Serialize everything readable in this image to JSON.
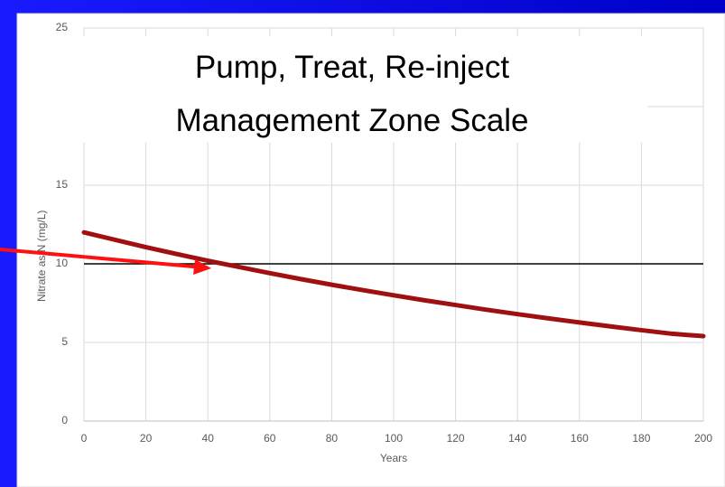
{
  "chart_data": {
    "type": "line",
    "title": [
      "Pump, Treat, Re-inject",
      "Management Zone Scale"
    ],
    "xlabel": "Years",
    "ylabel": "Nitrate as N (mg/L)",
    "x": [
      0,
      10,
      20,
      30,
      40,
      50,
      60,
      70,
      80,
      90,
      100,
      110,
      120,
      130,
      140,
      150,
      160,
      170,
      180,
      190,
      200
    ],
    "series": [
      {
        "color": "#a01010",
        "values": [
          12,
          11.53,
          11.06,
          10.62,
          10.2,
          9.8,
          9.41,
          9.03,
          8.67,
          8.33,
          8.0,
          7.68,
          7.38,
          7.08,
          6.8,
          6.53,
          6.27,
          6.02,
          5.78,
          5.55,
          5.4
        ]
      }
    ],
    "reference_line": {
      "value": 10,
      "color": "#000000"
    },
    "xlim": [
      0,
      200
    ],
    "xticks": [
      0,
      20,
      40,
      60,
      80,
      100,
      120,
      140,
      160,
      180,
      200
    ],
    "ylim": [
      0,
      25
    ],
    "yticks": [
      0,
      5,
      10,
      15,
      20,
      25
    ],
    "grid": true
  }
}
